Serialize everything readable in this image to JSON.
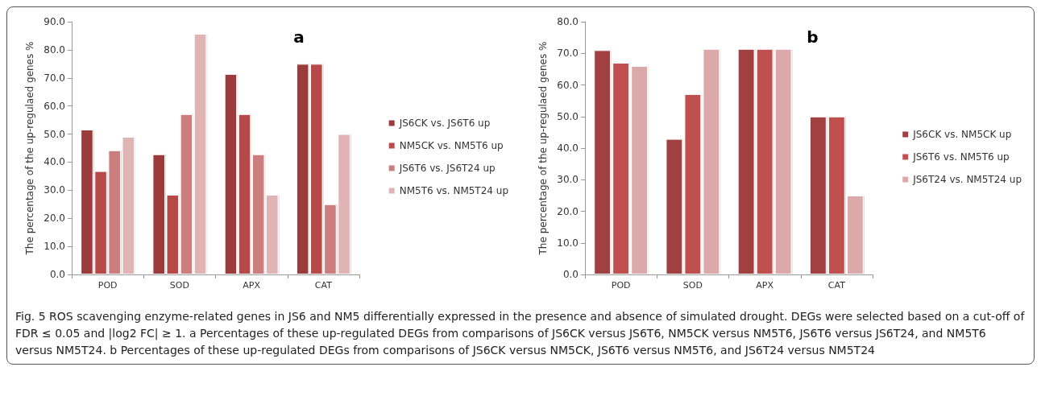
{
  "chart_data": [
    {
      "type": "bar",
      "title": "a",
      "ylabel": "The percentage of the up-regulaed genes %",
      "categories": [
        "POD",
        "SOD",
        "APX",
        "CAT"
      ],
      "series": [
        {
          "name": "JS6CK vs. JS6T6 up",
          "color": "#9b3b3b",
          "values": [
            51.6,
            42.8,
            71.4,
            75.0
          ]
        },
        {
          "name": "NM5CK vs. NM5T6 up",
          "color": "#b84a4a",
          "values": [
            36.8,
            28.4,
            57.1,
            75.0
          ]
        },
        {
          "name": "JS6T6 vs. JS6T24 up",
          "color": "#cc7d7d",
          "values": [
            44.2,
            57.1,
            42.8,
            25.0
          ]
        },
        {
          "name": "NM5T6 vs. NM5T24 up",
          "color": "#e0b4b4",
          "values": [
            49.0,
            85.7,
            28.4,
            50.0
          ]
        }
      ],
      "ylim": [
        0,
        90
      ],
      "yticks": [
        {
          "value": 0,
          "label": "0.0"
        },
        {
          "value": 10,
          "label": "10.0"
        },
        {
          "value": 20,
          "label": "20.0"
        },
        {
          "value": 30,
          "label": "30.0"
        },
        {
          "value": 40,
          "label": "40.0"
        },
        {
          "value": 50,
          "label": "50.0"
        },
        {
          "value": 60,
          "label": "60.0"
        },
        {
          "value": 70,
          "label": "70.0"
        },
        {
          "value": 80,
          "label": "80.0"
        },
        {
          "value": 90,
          "label": "90.0"
        }
      ],
      "grid": false,
      "legend": "right",
      "annotations": [
        "Fig. 5 ROS scavenging enzyme-related genes in JS6 and NM5 differentially expressed in the presence and absence of simulated drought. DEGs were selected based on a cut-off of FDR ≤ 0.05 and |log2 FC| ≥ 1. a Percentages of these up-regulated DEGs from comparisons of JS6CK versus JS6T6, NM5CK versus NM5T6, JS6T6 versus JS6T24, and NM5T6 versus NM5T24. b Percentages of these up-regulated DEGs from comparisons of JS6CK versus NM5CK, JS6T6 versus NM5T6, and JS6T24 versus NM5T24"
      ]
    },
    {
      "type": "bar",
      "title": "b",
      "ylabel": "The percentage of the up-regulaed genes %",
      "categories": [
        "POD",
        "SOD",
        "APX",
        "CAT"
      ],
      "series": [
        {
          "name": "JS6CK vs. NM5CK up",
          "color": "#a04040",
          "values": [
            71.0,
            42.9,
            71.4,
            50.0
          ]
        },
        {
          "name": "JS6T6 vs. NM5T6 up",
          "color": "#c05050",
          "values": [
            67.0,
            57.1,
            71.4,
            50.0
          ]
        },
        {
          "name": "JS6T24 vs. NM5T24 up",
          "color": "#dba9a9",
          "values": [
            66.0,
            71.4,
            71.4,
            25.0
          ]
        }
      ],
      "ylim": [
        0,
        80
      ],
      "yticks": [
        {
          "value": 0,
          "label": "0.0"
        },
        {
          "value": 10,
          "label": "10.0"
        },
        {
          "value": 20,
          "label": "20.0"
        },
        {
          "value": 30,
          "label": "30.0"
        },
        {
          "value": 40,
          "label": "40.0"
        },
        {
          "value": 50,
          "label": "50.0"
        },
        {
          "value": 60,
          "label": "60.0"
        },
        {
          "value": 70,
          "label": "70.0"
        },
        {
          "value": 80,
          "label": "80.0"
        }
      ],
      "grid": false,
      "legend": "right"
    }
  ]
}
